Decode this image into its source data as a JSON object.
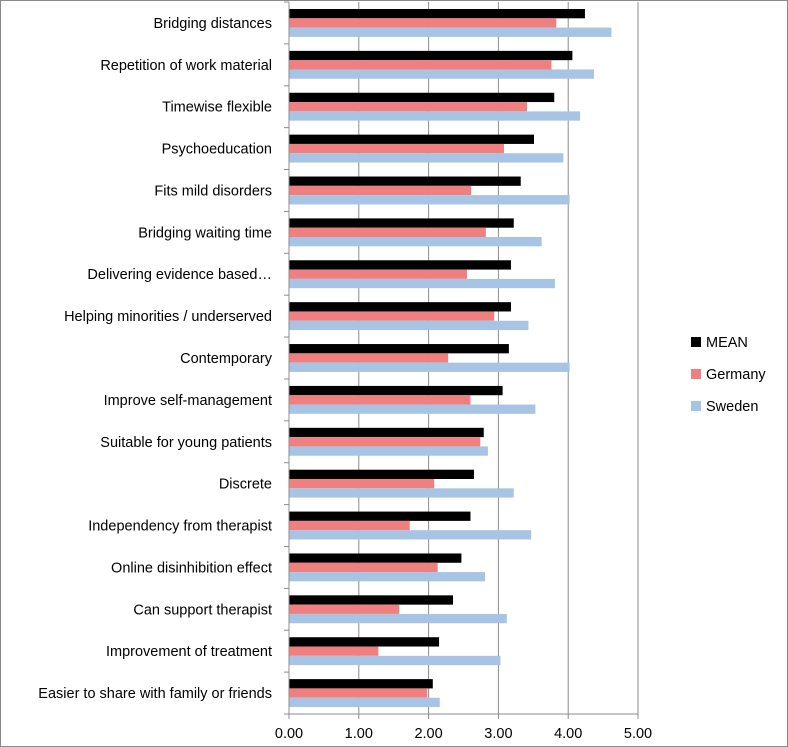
{
  "chart_data": {
    "type": "bar",
    "orientation": "horizontal",
    "title": "",
    "xlabel": "",
    "ylabel": "",
    "xlim": [
      0,
      5
    ],
    "grid": true,
    "legend_position": "right",
    "categories": [
      "Bridging distances",
      "Repetition of work material",
      "Timewise flexible",
      "Psychoeducation",
      "Fits mild disorders",
      "Bridging waiting time",
      "Delivering evidence based…",
      "Helping minorities / underserved",
      "Contemporary",
      "Improve self-management",
      "Suitable for young patients",
      "Discrete",
      "Independency from therapist",
      "Online disinhibition effect",
      "Can support therapist",
      "Improvement of treatment",
      "Easier to share with family or friends"
    ],
    "x_ticks": [
      "0.00",
      "1.00",
      "2.00",
      "3.00",
      "4.00",
      "5.00"
    ],
    "x_tick_values": [
      0,
      1,
      2,
      3,
      4,
      5
    ],
    "series": [
      {
        "name": "MEAN",
        "color": "#000000",
        "values": [
          4.24,
          4.06,
          3.8,
          3.51,
          3.32,
          3.22,
          3.18,
          3.18,
          3.15,
          3.06,
          2.79,
          2.65,
          2.6,
          2.47,
          2.35,
          2.15,
          2.06
        ]
      },
      {
        "name": "Germany",
        "color": "#f08080",
        "values": [
          3.83,
          3.76,
          3.41,
          3.08,
          2.61,
          2.82,
          2.55,
          2.94,
          2.28,
          2.6,
          2.74,
          2.08,
          1.73,
          2.13,
          1.58,
          1.28,
          1.98
        ]
      },
      {
        "name": "Sweden",
        "color": "#a8c4e4",
        "values": [
          4.62,
          4.37,
          4.17,
          3.93,
          4.02,
          3.62,
          3.81,
          3.43,
          4.02,
          3.53,
          2.85,
          3.22,
          3.47,
          2.81,
          3.12,
          3.03,
          2.16
        ]
      }
    ]
  }
}
